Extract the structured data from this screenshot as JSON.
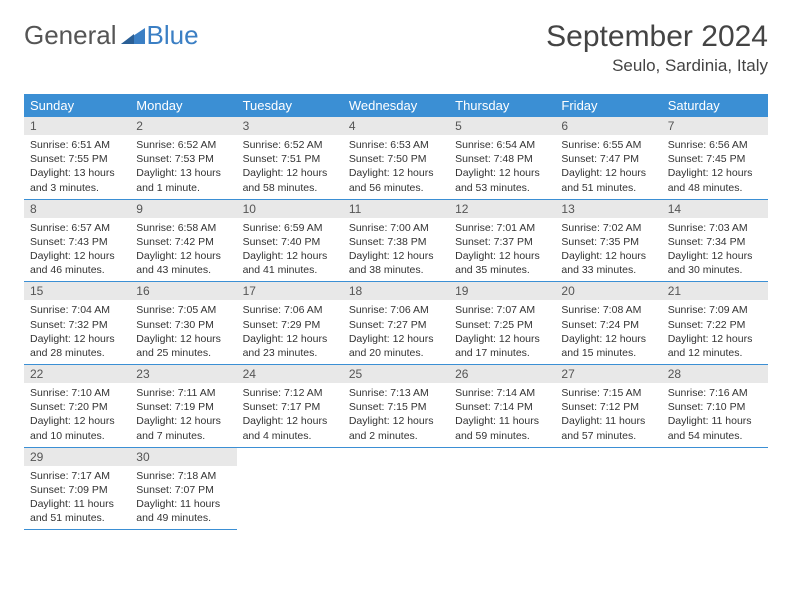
{
  "logo": {
    "text1": "General",
    "text2": "Blue"
  },
  "title": "September 2024",
  "location": "Seulo, Sardinia, Italy",
  "colors": {
    "header_bg": "#3b8fd4",
    "header_text": "#ffffff",
    "daynum_bg": "#e8e8e8",
    "rule": "#3b8fd4",
    "logo_blue": "#3b7fc4",
    "text": "#333333"
  },
  "weekdays": [
    "Sunday",
    "Monday",
    "Tuesday",
    "Wednesday",
    "Thursday",
    "Friday",
    "Saturday"
  ],
  "weeks": [
    [
      {
        "n": "1",
        "sr": "Sunrise: 6:51 AM",
        "ss": "Sunset: 7:55 PM",
        "dl": "Daylight: 13 hours and 3 minutes."
      },
      {
        "n": "2",
        "sr": "Sunrise: 6:52 AM",
        "ss": "Sunset: 7:53 PM",
        "dl": "Daylight: 13 hours and 1 minute."
      },
      {
        "n": "3",
        "sr": "Sunrise: 6:52 AM",
        "ss": "Sunset: 7:51 PM",
        "dl": "Daylight: 12 hours and 58 minutes."
      },
      {
        "n": "4",
        "sr": "Sunrise: 6:53 AM",
        "ss": "Sunset: 7:50 PM",
        "dl": "Daylight: 12 hours and 56 minutes."
      },
      {
        "n": "5",
        "sr": "Sunrise: 6:54 AM",
        "ss": "Sunset: 7:48 PM",
        "dl": "Daylight: 12 hours and 53 minutes."
      },
      {
        "n": "6",
        "sr": "Sunrise: 6:55 AM",
        "ss": "Sunset: 7:47 PM",
        "dl": "Daylight: 12 hours and 51 minutes."
      },
      {
        "n": "7",
        "sr": "Sunrise: 6:56 AM",
        "ss": "Sunset: 7:45 PM",
        "dl": "Daylight: 12 hours and 48 minutes."
      }
    ],
    [
      {
        "n": "8",
        "sr": "Sunrise: 6:57 AM",
        "ss": "Sunset: 7:43 PM",
        "dl": "Daylight: 12 hours and 46 minutes."
      },
      {
        "n": "9",
        "sr": "Sunrise: 6:58 AM",
        "ss": "Sunset: 7:42 PM",
        "dl": "Daylight: 12 hours and 43 minutes."
      },
      {
        "n": "10",
        "sr": "Sunrise: 6:59 AM",
        "ss": "Sunset: 7:40 PM",
        "dl": "Daylight: 12 hours and 41 minutes."
      },
      {
        "n": "11",
        "sr": "Sunrise: 7:00 AM",
        "ss": "Sunset: 7:38 PM",
        "dl": "Daylight: 12 hours and 38 minutes."
      },
      {
        "n": "12",
        "sr": "Sunrise: 7:01 AM",
        "ss": "Sunset: 7:37 PM",
        "dl": "Daylight: 12 hours and 35 minutes."
      },
      {
        "n": "13",
        "sr": "Sunrise: 7:02 AM",
        "ss": "Sunset: 7:35 PM",
        "dl": "Daylight: 12 hours and 33 minutes."
      },
      {
        "n": "14",
        "sr": "Sunrise: 7:03 AM",
        "ss": "Sunset: 7:34 PM",
        "dl": "Daylight: 12 hours and 30 minutes."
      }
    ],
    [
      {
        "n": "15",
        "sr": "Sunrise: 7:04 AM",
        "ss": "Sunset: 7:32 PM",
        "dl": "Daylight: 12 hours and 28 minutes."
      },
      {
        "n": "16",
        "sr": "Sunrise: 7:05 AM",
        "ss": "Sunset: 7:30 PM",
        "dl": "Daylight: 12 hours and 25 minutes."
      },
      {
        "n": "17",
        "sr": "Sunrise: 7:06 AM",
        "ss": "Sunset: 7:29 PM",
        "dl": "Daylight: 12 hours and 23 minutes."
      },
      {
        "n": "18",
        "sr": "Sunrise: 7:06 AM",
        "ss": "Sunset: 7:27 PM",
        "dl": "Daylight: 12 hours and 20 minutes."
      },
      {
        "n": "19",
        "sr": "Sunrise: 7:07 AM",
        "ss": "Sunset: 7:25 PM",
        "dl": "Daylight: 12 hours and 17 minutes."
      },
      {
        "n": "20",
        "sr": "Sunrise: 7:08 AM",
        "ss": "Sunset: 7:24 PM",
        "dl": "Daylight: 12 hours and 15 minutes."
      },
      {
        "n": "21",
        "sr": "Sunrise: 7:09 AM",
        "ss": "Sunset: 7:22 PM",
        "dl": "Daylight: 12 hours and 12 minutes."
      }
    ],
    [
      {
        "n": "22",
        "sr": "Sunrise: 7:10 AM",
        "ss": "Sunset: 7:20 PM",
        "dl": "Daylight: 12 hours and 10 minutes."
      },
      {
        "n": "23",
        "sr": "Sunrise: 7:11 AM",
        "ss": "Sunset: 7:19 PM",
        "dl": "Daylight: 12 hours and 7 minutes."
      },
      {
        "n": "24",
        "sr": "Sunrise: 7:12 AM",
        "ss": "Sunset: 7:17 PM",
        "dl": "Daylight: 12 hours and 4 minutes."
      },
      {
        "n": "25",
        "sr": "Sunrise: 7:13 AM",
        "ss": "Sunset: 7:15 PM",
        "dl": "Daylight: 12 hours and 2 minutes."
      },
      {
        "n": "26",
        "sr": "Sunrise: 7:14 AM",
        "ss": "Sunset: 7:14 PM",
        "dl": "Daylight: 11 hours and 59 minutes."
      },
      {
        "n": "27",
        "sr": "Sunrise: 7:15 AM",
        "ss": "Sunset: 7:12 PM",
        "dl": "Daylight: 11 hours and 57 minutes."
      },
      {
        "n": "28",
        "sr": "Sunrise: 7:16 AM",
        "ss": "Sunset: 7:10 PM",
        "dl": "Daylight: 11 hours and 54 minutes."
      }
    ],
    [
      {
        "n": "29",
        "sr": "Sunrise: 7:17 AM",
        "ss": "Sunset: 7:09 PM",
        "dl": "Daylight: 11 hours and 51 minutes."
      },
      {
        "n": "30",
        "sr": "Sunrise: 7:18 AM",
        "ss": "Sunset: 7:07 PM",
        "dl": "Daylight: 11 hours and 49 minutes."
      },
      null,
      null,
      null,
      null,
      null
    ]
  ]
}
